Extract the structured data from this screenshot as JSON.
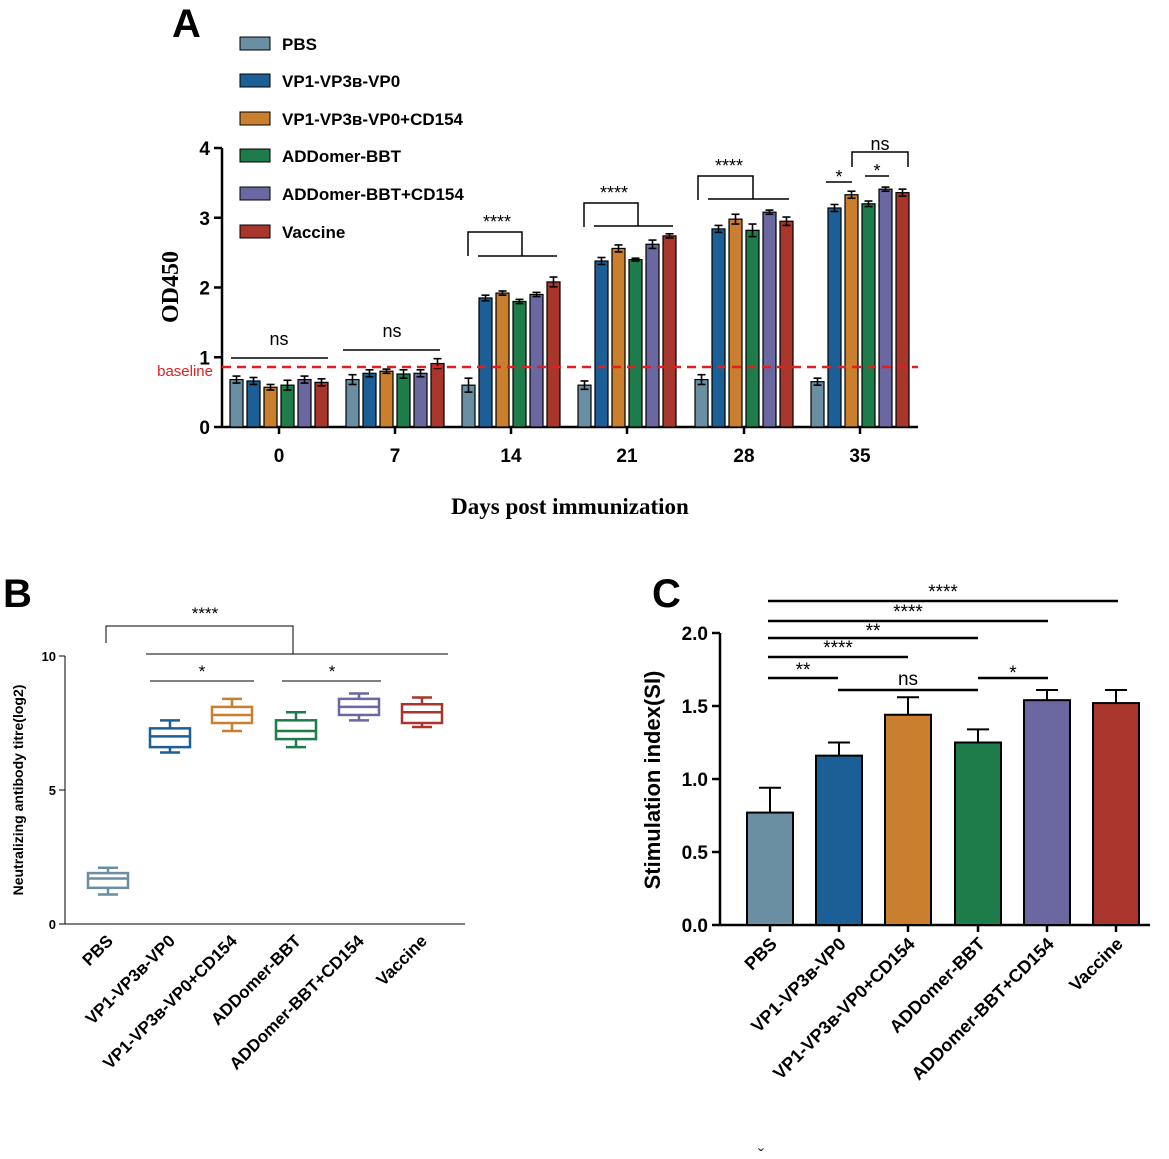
{
  "colors": [
    "#6a8fa3",
    "#1b5f96",
    "#c97f2d",
    "#1e7b4a",
    "#6b67a0",
    "#a8362c"
  ],
  "chart_data": [
    {
      "panel": "A",
      "type": "bar",
      "ylabel": "OD450",
      "xlabel": "Days post immunization",
      "ylim": [
        0,
        4
      ],
      "yticks": [
        "0",
        "1",
        "2",
        "3",
        "4"
      ],
      "categories": [
        "0",
        "7",
        "14",
        "21",
        "28",
        "35"
      ],
      "baseline": {
        "label": "baseline",
        "value": 0.86
      },
      "series": [
        {
          "name": "PBS",
          "values": [
            0.68,
            0.68,
            0.6,
            0.6,
            0.68,
            0.65
          ],
          "errors": [
            0.05,
            0.07,
            0.1,
            0.06,
            0.07,
            0.05
          ]
        },
        {
          "name": "VP1-VP3ʙ-VP0",
          "values": [
            0.66,
            0.77,
            1.85,
            2.38,
            2.84,
            3.14
          ],
          "errors": [
            0.05,
            0.05,
            0.04,
            0.05,
            0.05,
            0.05
          ]
        },
        {
          "name": "VP1-VP3ʙ-VP0+CD154",
          "values": [
            0.57,
            0.8,
            1.92,
            2.56,
            2.98,
            3.33
          ],
          "errors": [
            0.04,
            0.03,
            0.03,
            0.05,
            0.07,
            0.05
          ]
        },
        {
          "name": "ADDomer-BBT",
          "values": [
            0.6,
            0.76,
            1.8,
            2.4,
            2.82,
            3.2
          ],
          "errors": [
            0.07,
            0.06,
            0.03,
            0.02,
            0.09,
            0.04
          ]
        },
        {
          "name": "ADDomer-BBT+CD154",
          "values": [
            0.68,
            0.77,
            1.9,
            2.62,
            3.08,
            3.41
          ],
          "errors": [
            0.05,
            0.05,
            0.03,
            0.06,
            0.03,
            0.03
          ]
        },
        {
          "name": "Vaccine",
          "values": [
            0.64,
            0.91,
            2.08,
            2.74,
            2.95,
            3.36
          ],
          "errors": [
            0.05,
            0.07,
            0.07,
            0.03,
            0.06,
            0.05
          ]
        }
      ],
      "annotations": {
        "ns": "ns",
        "s4": "****",
        "s1": "*"
      }
    },
    {
      "panel": "B",
      "type": "box",
      "ylabel": "Neutralizing antibody titre(log2)",
      "ylim": [
        0,
        10
      ],
      "yticks": [
        "0",
        "5",
        "10"
      ],
      "categories": [
        "PBS",
        "VP1-VP3ʙ-VP0",
        "VP1-VP3ʙ-VP0+CD154",
        "ADDomer-BBT",
        "ADDomer-BBT+CD154",
        "Vaccine"
      ],
      "boxes": [
        {
          "min": 1.1,
          "q1": 1.35,
          "median": 1.7,
          "q3": 1.9,
          "max": 2.1
        },
        {
          "min": 6.4,
          "q1": 6.6,
          "median": 7.0,
          "q3": 7.3,
          "max": 7.6
        },
        {
          "min": 7.2,
          "q1": 7.5,
          "median": 7.8,
          "q3": 8.1,
          "max": 8.4
        },
        {
          "min": 6.6,
          "q1": 6.9,
          "median": 7.2,
          "q3": 7.6,
          "max": 7.9
        },
        {
          "min": 7.6,
          "q1": 7.8,
          "median": 8.1,
          "q3": 8.4,
          "max": 8.6
        },
        {
          "min": 7.35,
          "q1": 7.5,
          "median": 7.9,
          "q3": 8.2,
          "max": 8.45
        }
      ],
      "annotations": {
        "s4": "****",
        "s1": "*"
      }
    },
    {
      "panel": "C",
      "type": "bar",
      "ylabel": "Stimulation index(SI)",
      "ylim": [
        0,
        2
      ],
      "yticks": [
        "0.0",
        "0.5",
        "1.0",
        "1.5",
        "2.0"
      ],
      "categories": [
        "PBS",
        "VP1-VP3ʙ-VP0",
        "VP1-VP3ʙ-VP0+CD154",
        "ADDomer-BBT",
        "ADDomer-BBT+CD154",
        "Vaccine"
      ],
      "values": [
        0.77,
        1.16,
        1.44,
        1.25,
        1.54,
        1.52
      ],
      "errors": [
        0.17,
        0.09,
        0.12,
        0.09,
        0.07,
        0.09
      ],
      "annotations": {
        "s4": "****",
        "s2": "**",
        "ns": "ns",
        "s1": "*"
      }
    }
  ],
  "panel_labels": {
    "a": "A",
    "b": "B",
    "c": "C"
  },
  "footer_mark": "ˇ"
}
